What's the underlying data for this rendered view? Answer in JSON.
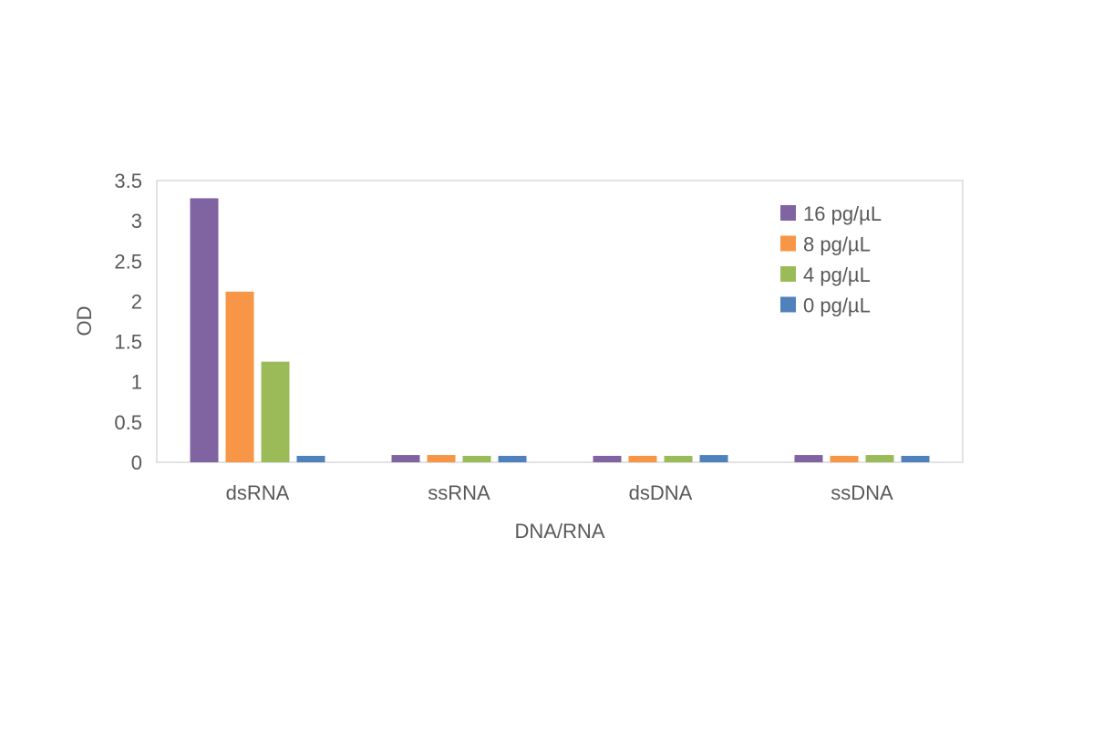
{
  "chart_data": {
    "type": "bar",
    "title": "",
    "xlabel": "DNA/RNA",
    "ylabel": "OD",
    "ylim": [
      0,
      3.5
    ],
    "yticks": [
      "0",
      "0.5",
      "1",
      "1.5",
      "2",
      "2.5",
      "3",
      "3.5"
    ],
    "grid": false,
    "legend_position": "top-right",
    "categories": [
      "dsRNA",
      "ssRNA",
      "dsDNA",
      "ssDNA"
    ],
    "series": [
      {
        "name": "16 pg/µL",
        "color": "#8064a2",
        "values": [
          3.28,
          0.09,
          0.08,
          0.09
        ]
      },
      {
        "name": "8 pg/µL",
        "color": "#f79646",
        "values": [
          2.12,
          0.09,
          0.08,
          0.08
        ]
      },
      {
        "name": "4 pg/µL",
        "color": "#9bbb59",
        "values": [
          1.25,
          0.08,
          0.08,
          0.09
        ]
      },
      {
        "name": "0 pg/µL",
        "color": "#4f81bd",
        "values": [
          0.08,
          0.08,
          0.09,
          0.08
        ]
      }
    ]
  }
}
